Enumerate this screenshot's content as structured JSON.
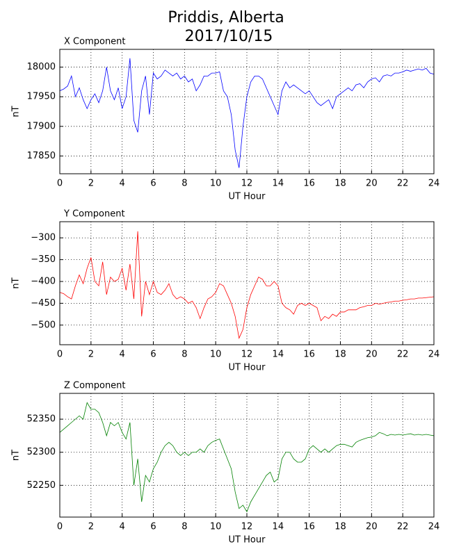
{
  "title": "Priddis, Alberta",
  "subtitle": "2017/10/15",
  "chart_data": [
    {
      "type": "line",
      "title": "X Component",
      "xlabel": "UT Hour",
      "ylabel": "nT",
      "grid": true,
      "xlim": [
        0,
        24
      ],
      "xticks": [
        0,
        2,
        4,
        6,
        8,
        10,
        12,
        14,
        16,
        18,
        20,
        22,
        24
      ],
      "ylim": [
        17820,
        18030
      ],
      "yticks": [
        17850,
        17900,
        17950,
        18000
      ],
      "x": [
        0,
        0.25,
        0.5,
        0.75,
        1,
        1.25,
        1.5,
        1.75,
        2,
        2.25,
        2.5,
        2.75,
        3,
        3.25,
        3.5,
        3.75,
        4,
        4.25,
        4.5,
        4.75,
        5,
        5.25,
        5.5,
        5.75,
        6,
        6.25,
        6.5,
        6.75,
        7,
        7.25,
        7.5,
        7.75,
        8,
        8.25,
        8.5,
        8.75,
        9,
        9.25,
        9.5,
        9.75,
        10,
        10.25,
        10.5,
        10.75,
        11,
        11.25,
        11.5,
        11.75,
        12,
        12.25,
        12.5,
        12.75,
        13,
        13.25,
        13.5,
        13.75,
        14,
        14.25,
        14.5,
        14.75,
        15,
        15.25,
        15.5,
        15.75,
        16,
        16.25,
        16.5,
        16.75,
        17,
        17.25,
        17.5,
        17.75,
        18,
        18.25,
        18.5,
        18.75,
        19,
        19.25,
        19.5,
        19.75,
        20,
        20.25,
        20.5,
        20.75,
        21,
        21.25,
        21.5,
        21.75,
        22,
        22.25,
        22.5,
        22.75,
        23,
        23.25,
        23.5,
        23.75,
        24
      ],
      "series": [
        {
          "name": "X",
          "color": "#0000ff",
          "values": [
            17960,
            17963,
            17968,
            17985,
            17950,
            17965,
            17945,
            17930,
            17945,
            17955,
            17940,
            17960,
            18000,
            17960,
            17945,
            17965,
            17930,
            17950,
            18015,
            17910,
            17890,
            17960,
            17985,
            17920,
            17990,
            17980,
            17985,
            17995,
            17990,
            17985,
            17990,
            17980,
            17985,
            17975,
            17980,
            17960,
            17970,
            17985,
            17985,
            17990,
            17990,
            17992,
            17960,
            17950,
            17920,
            17860,
            17830,
            17900,
            17950,
            17975,
            17985,
            17985,
            17980,
            17965,
            17950,
            17935,
            17920,
            17960,
            17975,
            17965,
            17970,
            17965,
            17960,
            17955,
            17960,
            17950,
            17940,
            17935,
            17940,
            17945,
            17930,
            17950,
            17955,
            17960,
            17965,
            17960,
            17970,
            17972,
            17965,
            17975,
            17980,
            17982,
            17975,
            17985,
            17987,
            17985,
            17990,
            17990,
            17992,
            17995,
            17993,
            17995,
            17997,
            17995,
            17998,
            17990,
            17988
          ]
        }
      ]
    },
    {
      "type": "line",
      "title": "Y Component",
      "xlabel": "UT Hour",
      "ylabel": "nT",
      "grid": true,
      "xlim": [
        0,
        24
      ],
      "xticks": [
        0,
        2,
        4,
        6,
        8,
        10,
        12,
        14,
        16,
        18,
        20,
        22,
        24
      ],
      "ylim": [
        -545,
        -263
      ],
      "yticks": [
        {
          "value": -500,
          "label": "−500"
        },
        {
          "value": -450,
          "label": "−450"
        },
        {
          "value": -400,
          "label": "−400"
        },
        {
          "value": -350,
          "label": "−350"
        },
        {
          "value": -300,
          "label": "−300"
        }
      ],
      "x": [
        0,
        0.25,
        0.5,
        0.75,
        1,
        1.25,
        1.5,
        1.75,
        2,
        2.25,
        2.5,
        2.75,
        3,
        3.25,
        3.5,
        3.75,
        4,
        4.25,
        4.5,
        4.75,
        5,
        5.25,
        5.5,
        5.75,
        6,
        6.25,
        6.5,
        6.75,
        7,
        7.25,
        7.5,
        7.75,
        8,
        8.25,
        8.5,
        8.75,
        9,
        9.25,
        9.5,
        9.75,
        10,
        10.25,
        10.5,
        10.75,
        11,
        11.25,
        11.5,
        11.75,
        12,
        12.25,
        12.5,
        12.75,
        13,
        13.25,
        13.5,
        13.75,
        14,
        14.25,
        14.5,
        14.75,
        15,
        15.25,
        15.5,
        15.75,
        16,
        16.25,
        16.5,
        16.75,
        17,
        17.25,
        17.5,
        17.75,
        18,
        18.25,
        18.5,
        18.75,
        19,
        19.25,
        19.5,
        19.75,
        20,
        20.25,
        20.5,
        20.75,
        21,
        21.25,
        21.5,
        21.75,
        22,
        22.25,
        22.5,
        22.75,
        23,
        23.25,
        23.5,
        23.75,
        24
      ],
      "series": [
        {
          "name": "Y",
          "color": "#ff0000",
          "values": [
            -425,
            -428,
            -435,
            -440,
            -410,
            -385,
            -405,
            -370,
            -345,
            -400,
            -410,
            -355,
            -430,
            -390,
            -400,
            -395,
            -370,
            -420,
            -360,
            -440,
            -285,
            -480,
            -400,
            -430,
            -400,
            -425,
            -430,
            -420,
            -405,
            -430,
            -440,
            -435,
            -440,
            -450,
            -445,
            -460,
            -485,
            -460,
            -440,
            -435,
            -425,
            -405,
            -410,
            -430,
            -450,
            -480,
            -530,
            -510,
            -460,
            -430,
            -410,
            -390,
            -395,
            -410,
            -410,
            -400,
            -410,
            -450,
            -460,
            -465,
            -475,
            -455,
            -450,
            -455,
            -450,
            -455,
            -460,
            -490,
            -480,
            -485,
            -475,
            -480,
            -470,
            -470,
            -465,
            -465,
            -465,
            -460,
            -458,
            -455,
            -455,
            -450,
            -452,
            -450,
            -448,
            -447,
            -445,
            -445,
            -443,
            -442,
            -440,
            -440,
            -438,
            -438,
            -437,
            -436,
            -435
          ]
        }
      ]
    },
    {
      "type": "line",
      "title": "Z Component",
      "xlabel": "UT Hour",
      "ylabel": "nT",
      "grid": true,
      "xlim": [
        0,
        24
      ],
      "xticks": [
        0,
        2,
        4,
        6,
        8,
        10,
        12,
        14,
        16,
        18,
        20,
        22,
        24
      ],
      "ylim": [
        52202,
        52389
      ],
      "yticks": [
        52250,
        52300,
        52350
      ],
      "x": [
        0,
        0.25,
        0.5,
        0.75,
        1,
        1.25,
        1.5,
        1.75,
        2,
        2.25,
        2.5,
        2.75,
        3,
        3.25,
        3.5,
        3.75,
        4,
        4.25,
        4.5,
        4.75,
        5,
        5.25,
        5.5,
        5.75,
        6,
        6.25,
        6.5,
        6.75,
        7,
        7.25,
        7.5,
        7.75,
        8,
        8.25,
        8.5,
        8.75,
        9,
        9.25,
        9.5,
        9.75,
        10,
        10.25,
        10.5,
        10.75,
        11,
        11.25,
        11.5,
        11.75,
        12,
        12.25,
        12.5,
        12.75,
        13,
        13.25,
        13.5,
        13.75,
        14,
        14.25,
        14.5,
        14.75,
        15,
        15.25,
        15.5,
        15.75,
        16,
        16.25,
        16.5,
        16.75,
        17,
        17.25,
        17.5,
        17.75,
        18,
        18.25,
        18.5,
        18.75,
        19,
        19.25,
        19.5,
        19.75,
        20,
        20.25,
        20.5,
        20.75,
        21,
        21.25,
        21.5,
        21.75,
        22,
        22.25,
        22.5,
        22.75,
        23,
        23.25,
        23.5,
        23.75,
        24
      ],
      "series": [
        {
          "name": "Z",
          "color": "#008000",
          "values": [
            52330,
            52335,
            52340,
            52345,
            52350,
            52355,
            52350,
            52375,
            52365,
            52365,
            52360,
            52345,
            52325,
            52345,
            52340,
            52345,
            52330,
            52320,
            52345,
            52250,
            52290,
            52225,
            52265,
            52255,
            52275,
            52285,
            52300,
            52310,
            52315,
            52310,
            52300,
            52295,
            52300,
            52295,
            52300,
            52300,
            52305,
            52300,
            52310,
            52315,
            52318,
            52320,
            52305,
            52290,
            52275,
            52240,
            52215,
            52220,
            52210,
            52225,
            52235,
            52245,
            52255,
            52265,
            52270,
            52255,
            52260,
            52290,
            52300,
            52300,
            52290,
            52285,
            52285,
            52290,
            52305,
            52310,
            52305,
            52300,
            52305,
            52300,
            52305,
            52310,
            52312,
            52312,
            52310,
            52308,
            52315,
            52318,
            52320,
            52322,
            52323,
            52325,
            52330,
            52328,
            52325,
            52327,
            52326,
            52327,
            52326,
            52327,
            52328,
            52326,
            52327,
            52326,
            52327,
            52326,
            52325
          ]
        }
      ]
    }
  ]
}
